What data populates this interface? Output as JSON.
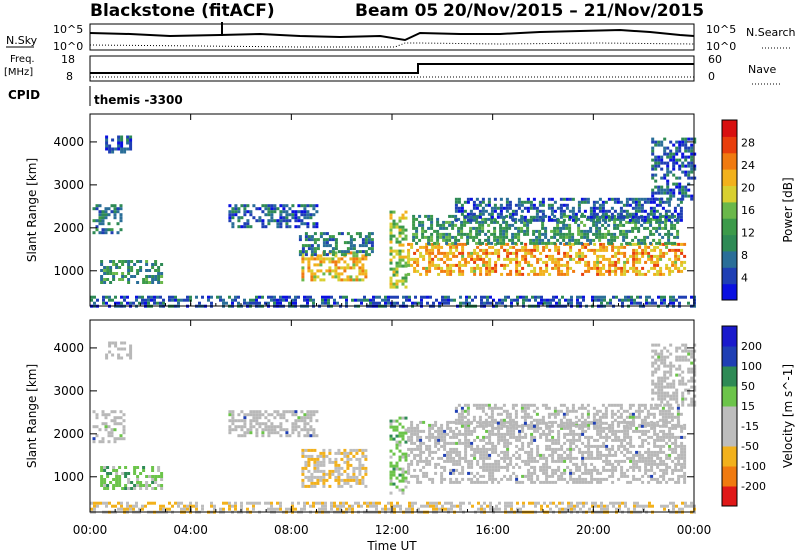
{
  "header": {
    "station": "Blackstone (fitACF)",
    "beam": "Beam 05",
    "date_range": "20/Nov/2015 – 21/Nov/2015"
  },
  "params": {
    "nsky_label": "N.Sky",
    "nsky_ticks": [
      "10^5",
      "10^0"
    ],
    "nsearch_label": "N.Search",
    "freq_label": "Freq.",
    "freq_unit": "[MHz]",
    "freq_ticks": [
      "18",
      "8"
    ],
    "nave_label": "Nave",
    "nave_ticks": [
      "60",
      "0"
    ],
    "cpid_label": "CPID",
    "cpid_value": "themis -3300"
  },
  "colors": {
    "power": [
      "#0a10e0",
      "#1f3fb4",
      "#2a6e98",
      "#2e8a55",
      "#3c9a4a",
      "#6ab84a",
      "#d8cf30",
      "#f2b11c",
      "#f07a10",
      "#e83e0c",
      "#d81010"
    ],
    "velocity": [
      "#e01818",
      "#f07a10",
      "#f2b11c",
      "#bdbdbd",
      "#bdbdbd",
      "#6cc44a",
      "#2e8a55",
      "#1f3fb4",
      "#1a1acc"
    ],
    "ground_scatter": "#b8b8b8"
  },
  "chart_data": [
    {
      "type": "heatmap",
      "title": "",
      "xlabel": "Time UT",
      "ylabel": "Slant Range [km]",
      "x_tick_labels": [
        "00:00",
        "04:00",
        "08:00",
        "12:00",
        "16:00",
        "20:00",
        "00:00"
      ],
      "x_range_hours": [
        0,
        24
      ],
      "y_tick_labels": [
        "1000",
        "2000",
        "3000",
        "4000"
      ],
      "ylim_km": [
        180,
        4650
      ],
      "colorbar": {
        "label": "Power [dB]",
        "tick_labels": [
          "4",
          "8",
          "12",
          "16",
          "20",
          "24",
          "28"
        ],
        "range": [
          0,
          32
        ]
      },
      "regions": [
        {
          "t0": 0.1,
          "t1": 1.2,
          "r0": 1900,
          "r1": 2550,
          "value": 8
        },
        {
          "t0": 0.4,
          "t1": 2.8,
          "r0": 750,
          "r1": 1250,
          "value": 11
        },
        {
          "t0": 0.6,
          "t1": 1.6,
          "r0": 3800,
          "r1": 4150,
          "value": 5
        },
        {
          "t0": 5.5,
          "t1": 9.0,
          "r0": 2000,
          "r1": 2550,
          "value": 6
        },
        {
          "t0": 8.4,
          "t1": 11.0,
          "r0": 800,
          "r1": 1450,
          "value": 21
        },
        {
          "t0": 8.3,
          "t1": 11.2,
          "r0": 1400,
          "r1": 1900,
          "value": 9
        },
        {
          "t0": 11.9,
          "t1": 12.5,
          "r0": 650,
          "r1": 2400,
          "value": 17
        },
        {
          "t0": 12.6,
          "t1": 23.6,
          "r0": 900,
          "r1": 1650,
          "value": 22
        },
        {
          "t0": 12.8,
          "t1": 23.4,
          "r0": 1650,
          "r1": 2300,
          "value": 11
        },
        {
          "t0": 14.5,
          "t1": 23.5,
          "r0": 2150,
          "r1": 2700,
          "value": 6
        },
        {
          "t0": 22.3,
          "t1": 24.0,
          "r0": 2700,
          "r1": 4100,
          "value": 6
        },
        {
          "t0": 0.0,
          "t1": 24.0,
          "r0": 180,
          "r1": 420,
          "value": 6
        }
      ]
    },
    {
      "type": "heatmap",
      "title": "",
      "xlabel": "Time UT",
      "ylabel": "Slant Range [km]",
      "x_tick_labels": [
        "00:00",
        "04:00",
        "08:00",
        "12:00",
        "16:00",
        "20:00",
        "00:00"
      ],
      "x_range_hours": [
        0,
        24
      ],
      "y_tick_labels": [
        "1000",
        "2000",
        "3000",
        "4000"
      ],
      "ylim_km": [
        180,
        4650
      ],
      "colorbar": {
        "label": "Velocity [m s^-1]",
        "tick_labels": [
          "-200",
          "-100",
          "-50",
          "-15",
          "15",
          "50",
          "100",
          "200"
        ],
        "boundaries": [
          -250,
          -200,
          -100,
          -50,
          -15,
          15,
          50,
          100,
          200,
          250
        ]
      },
      "regions": [
        {
          "t0": 0.1,
          "t1": 1.3,
          "r0": 1850,
          "r1": 2550,
          "value": "gs"
        },
        {
          "t0": 0.4,
          "t1": 2.8,
          "r0": 700,
          "r1": 1250,
          "value": 30
        },
        {
          "t0": 0.6,
          "t1": 1.6,
          "r0": 3800,
          "r1": 4150,
          "value": "gs"
        },
        {
          "t0": 5.5,
          "t1": 9.0,
          "r0": 1950,
          "r1": 2550,
          "value": "gs"
        },
        {
          "t0": 8.4,
          "t1": 11.0,
          "r0": 750,
          "r1": 1650,
          "value": -40
        },
        {
          "t0": 11.9,
          "t1": 12.5,
          "r0": 650,
          "r1": 2400,
          "value": 30
        },
        {
          "t0": 12.6,
          "t1": 23.6,
          "r0": 900,
          "r1": 2300,
          "value": "gs"
        },
        {
          "t0": 14.5,
          "t1": 23.5,
          "r0": 2150,
          "r1": 2700,
          "value": "gs"
        },
        {
          "t0": 22.3,
          "t1": 24.0,
          "r0": 2700,
          "r1": 4100,
          "value": "gs"
        },
        {
          "t0": 0.0,
          "t1": 24.0,
          "r0": 180,
          "r1": 420,
          "value": -40
        }
      ]
    }
  ]
}
